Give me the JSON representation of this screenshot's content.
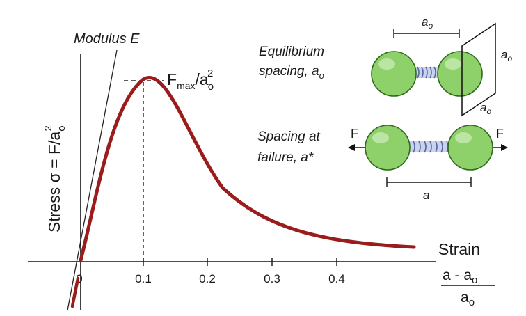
{
  "colors": {
    "curve": "#9b1c1c",
    "axis": "#111111",
    "sphere_fill": "#8ed06a",
    "sphere_stroke": "#2f6b1f",
    "spring": "#6e80b8"
  },
  "labels": {
    "modulus": "Modulus E",
    "fmax_main": "F",
    "fmax_sub": "max",
    "fmax_rest": "/a",
    "fmax_sub2": "o",
    "fmax_sup2": "2",
    "stress_prefix": "Stress  σ = F/a",
    "stress_sub": "o",
    "stress_sup": "2",
    "strain": "Strain",
    "strain_num_main": "a - a",
    "strain_num_sub": "o",
    "strain_den_main": "a",
    "strain_den_sub": "o",
    "eq_line1": "Equilibrium",
    "eq_line2": "spacing, a",
    "eq_line2_sub": "o",
    "fail_line1": "Spacing at",
    "fail_line2": "failure, a*",
    "dim_top_main": "a",
    "dim_top_sub": "o",
    "dim_right_main": "a",
    "dim_right_sub": "o",
    "dim_plane_main": "a",
    "dim_plane_sub": "o",
    "dim_bottom": "a",
    "force_left": "F",
    "force_right": "F"
  },
  "chart_data": {
    "type": "line",
    "xlabel": "Strain",
    "ylabel": "Stress",
    "x_ticks": [
      "0",
      "0.1",
      "0.2",
      "0.3",
      "0.4"
    ],
    "x_tick_values": [
      0,
      0.1,
      0.2,
      0.3,
      0.4
    ],
    "peak_strain": 0.1,
    "grid": false
  }
}
